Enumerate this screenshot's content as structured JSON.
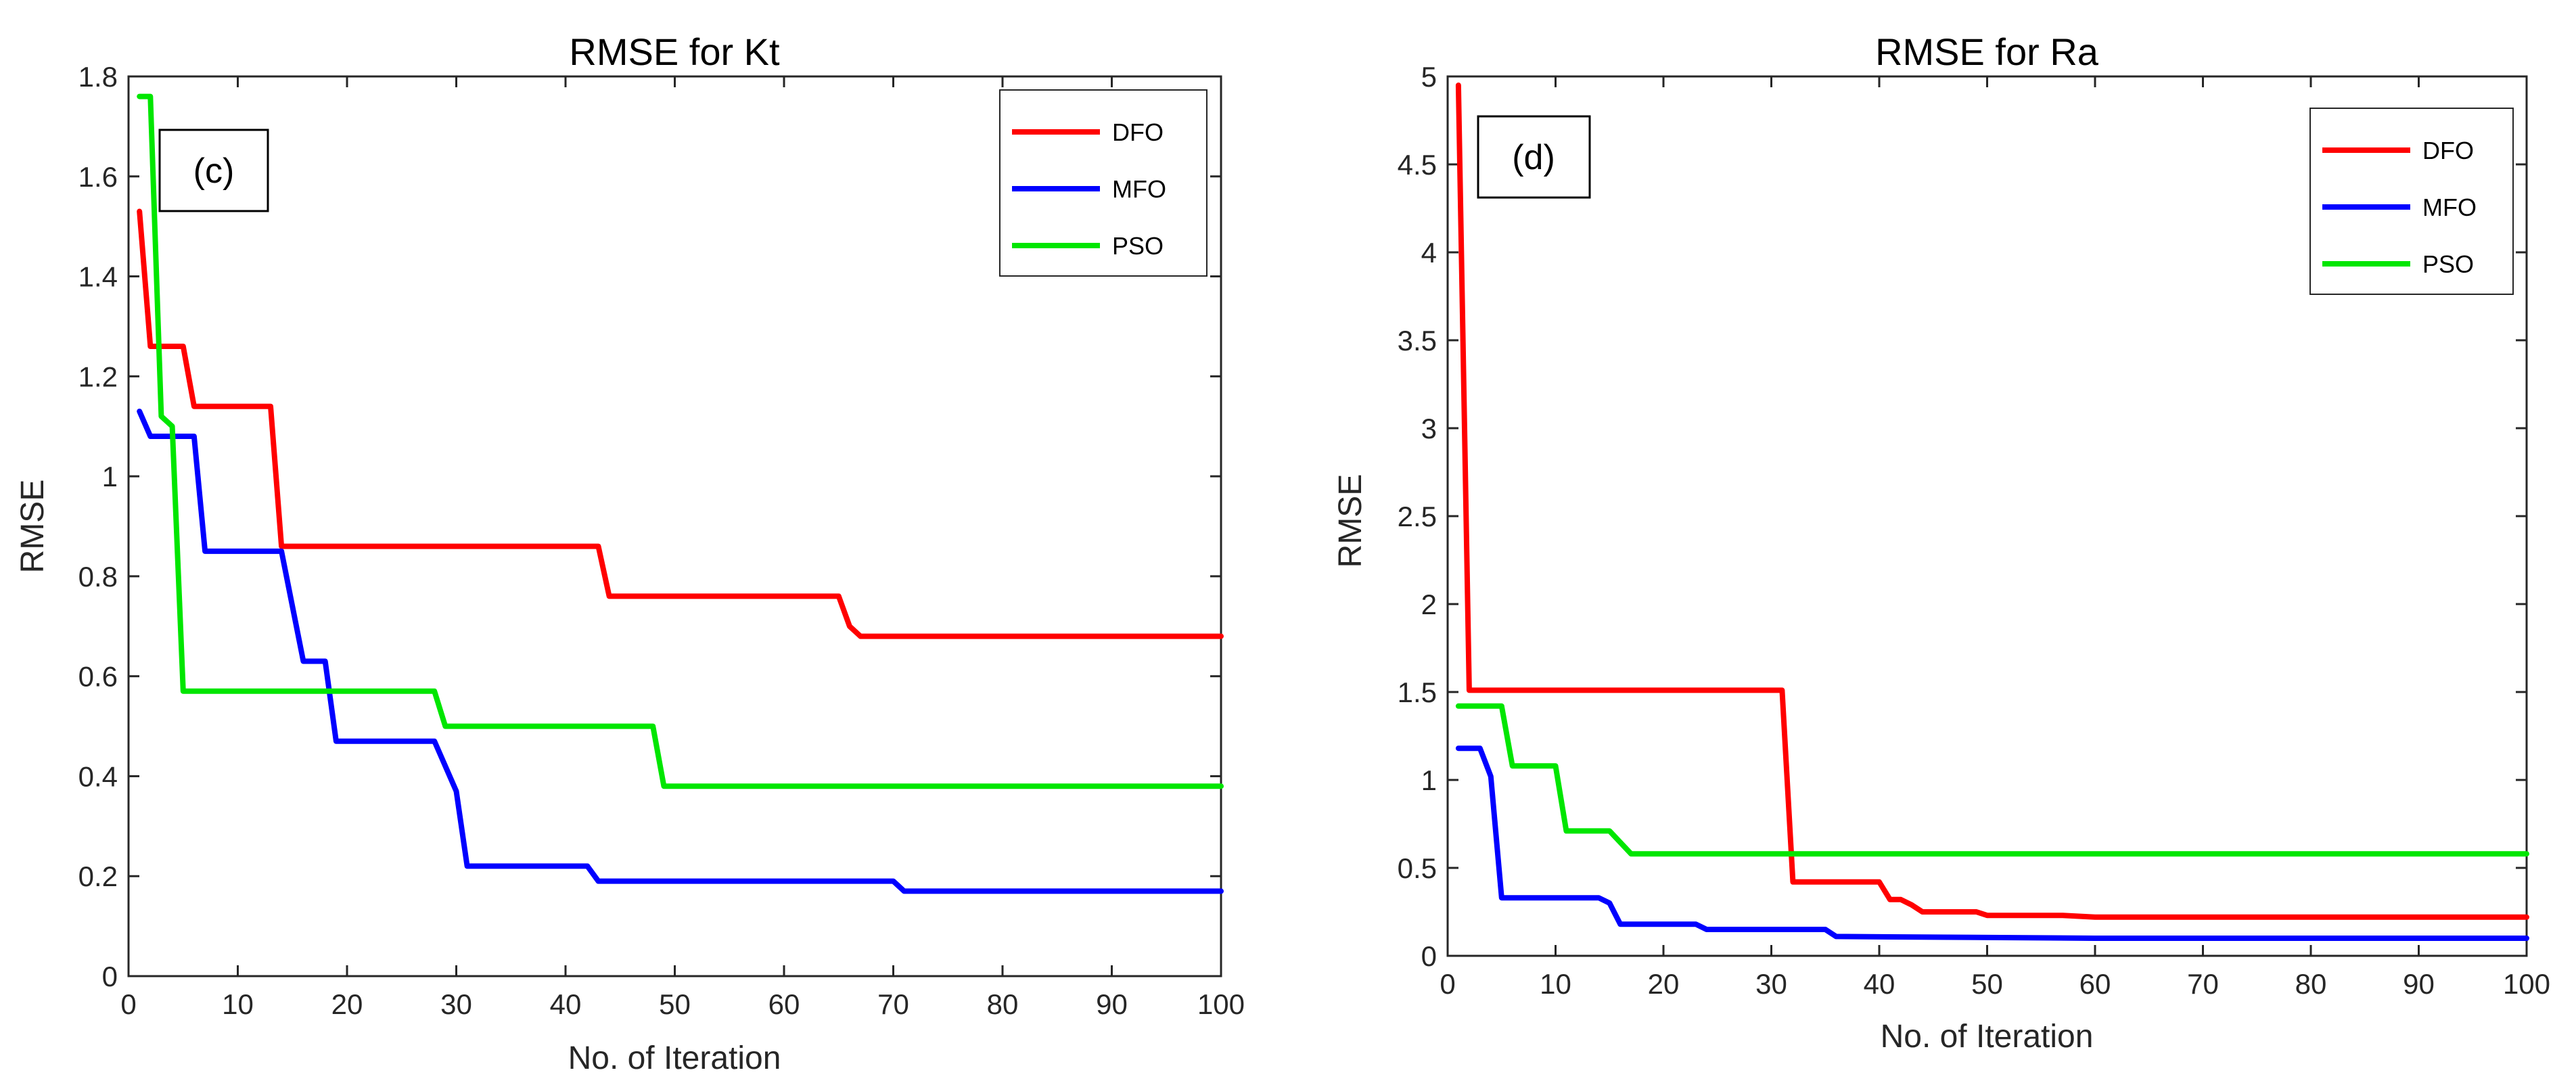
{
  "chart_data": [
    {
      "type": "line",
      "title": "RMSE for Kt",
      "panel_tag": "(c)",
      "xlabel": "No. of Iteration",
      "ylabel": "RMSE",
      "xlim": [
        0,
        100
      ],
      "ylim": [
        0,
        1.8
      ],
      "xticks": [
        "0",
        "10",
        "20",
        "30",
        "40",
        "50",
        "60",
        "70",
        "80",
        "90",
        "100"
      ],
      "yticks": [
        "0",
        "0.2",
        "0.4",
        "0.6",
        "0.8",
        "1",
        "1.2",
        "1.4",
        "1.6",
        "1.8"
      ],
      "legend_position": "top-right",
      "series": [
        {
          "name": "DFO",
          "color": "#ff0000",
          "x": [
            1,
            2,
            5,
            6,
            13,
            14,
            43,
            44,
            65,
            66,
            67,
            100
          ],
          "y": [
            1.53,
            1.26,
            1.26,
            1.14,
            1.14,
            0.86,
            0.86,
            0.76,
            0.76,
            0.7,
            0.68,
            0.68
          ]
        },
        {
          "name": "MFO",
          "color": "#0000ff",
          "x": [
            1,
            2,
            6,
            7,
            14,
            16,
            18,
            19,
            28,
            30,
            31,
            42,
            43,
            70,
            71,
            100
          ],
          "y": [
            1.13,
            1.08,
            1.08,
            0.85,
            0.85,
            0.63,
            0.63,
            0.47,
            0.47,
            0.37,
            0.22,
            0.22,
            0.19,
            0.19,
            0.17,
            0.17
          ]
        },
        {
          "name": "PSO",
          "color": "#00e600",
          "x": [
            1,
            2,
            3,
            4,
            5,
            28,
            29,
            48,
            49,
            100
          ],
          "y": [
            1.76,
            1.76,
            1.12,
            1.1,
            0.57,
            0.57,
            0.5,
            0.5,
            0.38,
            0.38
          ]
        }
      ]
    },
    {
      "type": "line",
      "title": "RMSE for Ra",
      "panel_tag": "(d)",
      "xlabel": "No. of Iteration",
      "ylabel": "RMSE",
      "xlim": [
        0,
        100
      ],
      "ylim": [
        0,
        5
      ],
      "xticks": [
        "0",
        "10",
        "20",
        "30",
        "40",
        "50",
        "60",
        "70",
        "80",
        "90",
        "100"
      ],
      "yticks": [
        "0",
        "0.5",
        "1",
        "1.5",
        "2",
        "2.5",
        "3",
        "3.5",
        "4",
        "4.5",
        "5"
      ],
      "legend_position": "top-right",
      "series": [
        {
          "name": "DFO",
          "color": "#ff0000",
          "x": [
            1,
            2,
            31,
            32,
            40,
            41,
            42,
            43,
            44,
            49,
            50,
            57,
            60,
            100
          ],
          "y": [
            4.95,
            1.51,
            1.51,
            0.42,
            0.42,
            0.32,
            0.32,
            0.29,
            0.25,
            0.25,
            0.23,
            0.23,
            0.22,
            0.22
          ]
        },
        {
          "name": "MFO",
          "color": "#0000ff",
          "x": [
            1,
            3,
            4,
            5,
            14,
            15,
            16,
            23,
            24,
            35,
            36,
            60,
            100
          ],
          "y": [
            1.18,
            1.18,
            1.02,
            0.33,
            0.33,
            0.3,
            0.18,
            0.18,
            0.15,
            0.15,
            0.11,
            0.1,
            0.1
          ]
        },
        {
          "name": "PSO",
          "color": "#00e600",
          "x": [
            1,
            5,
            6,
            10,
            11,
            15,
            17,
            100
          ],
          "y": [
            1.42,
            1.42,
            1.08,
            1.08,
            0.71,
            0.71,
            0.58,
            0.58
          ]
        }
      ]
    }
  ]
}
